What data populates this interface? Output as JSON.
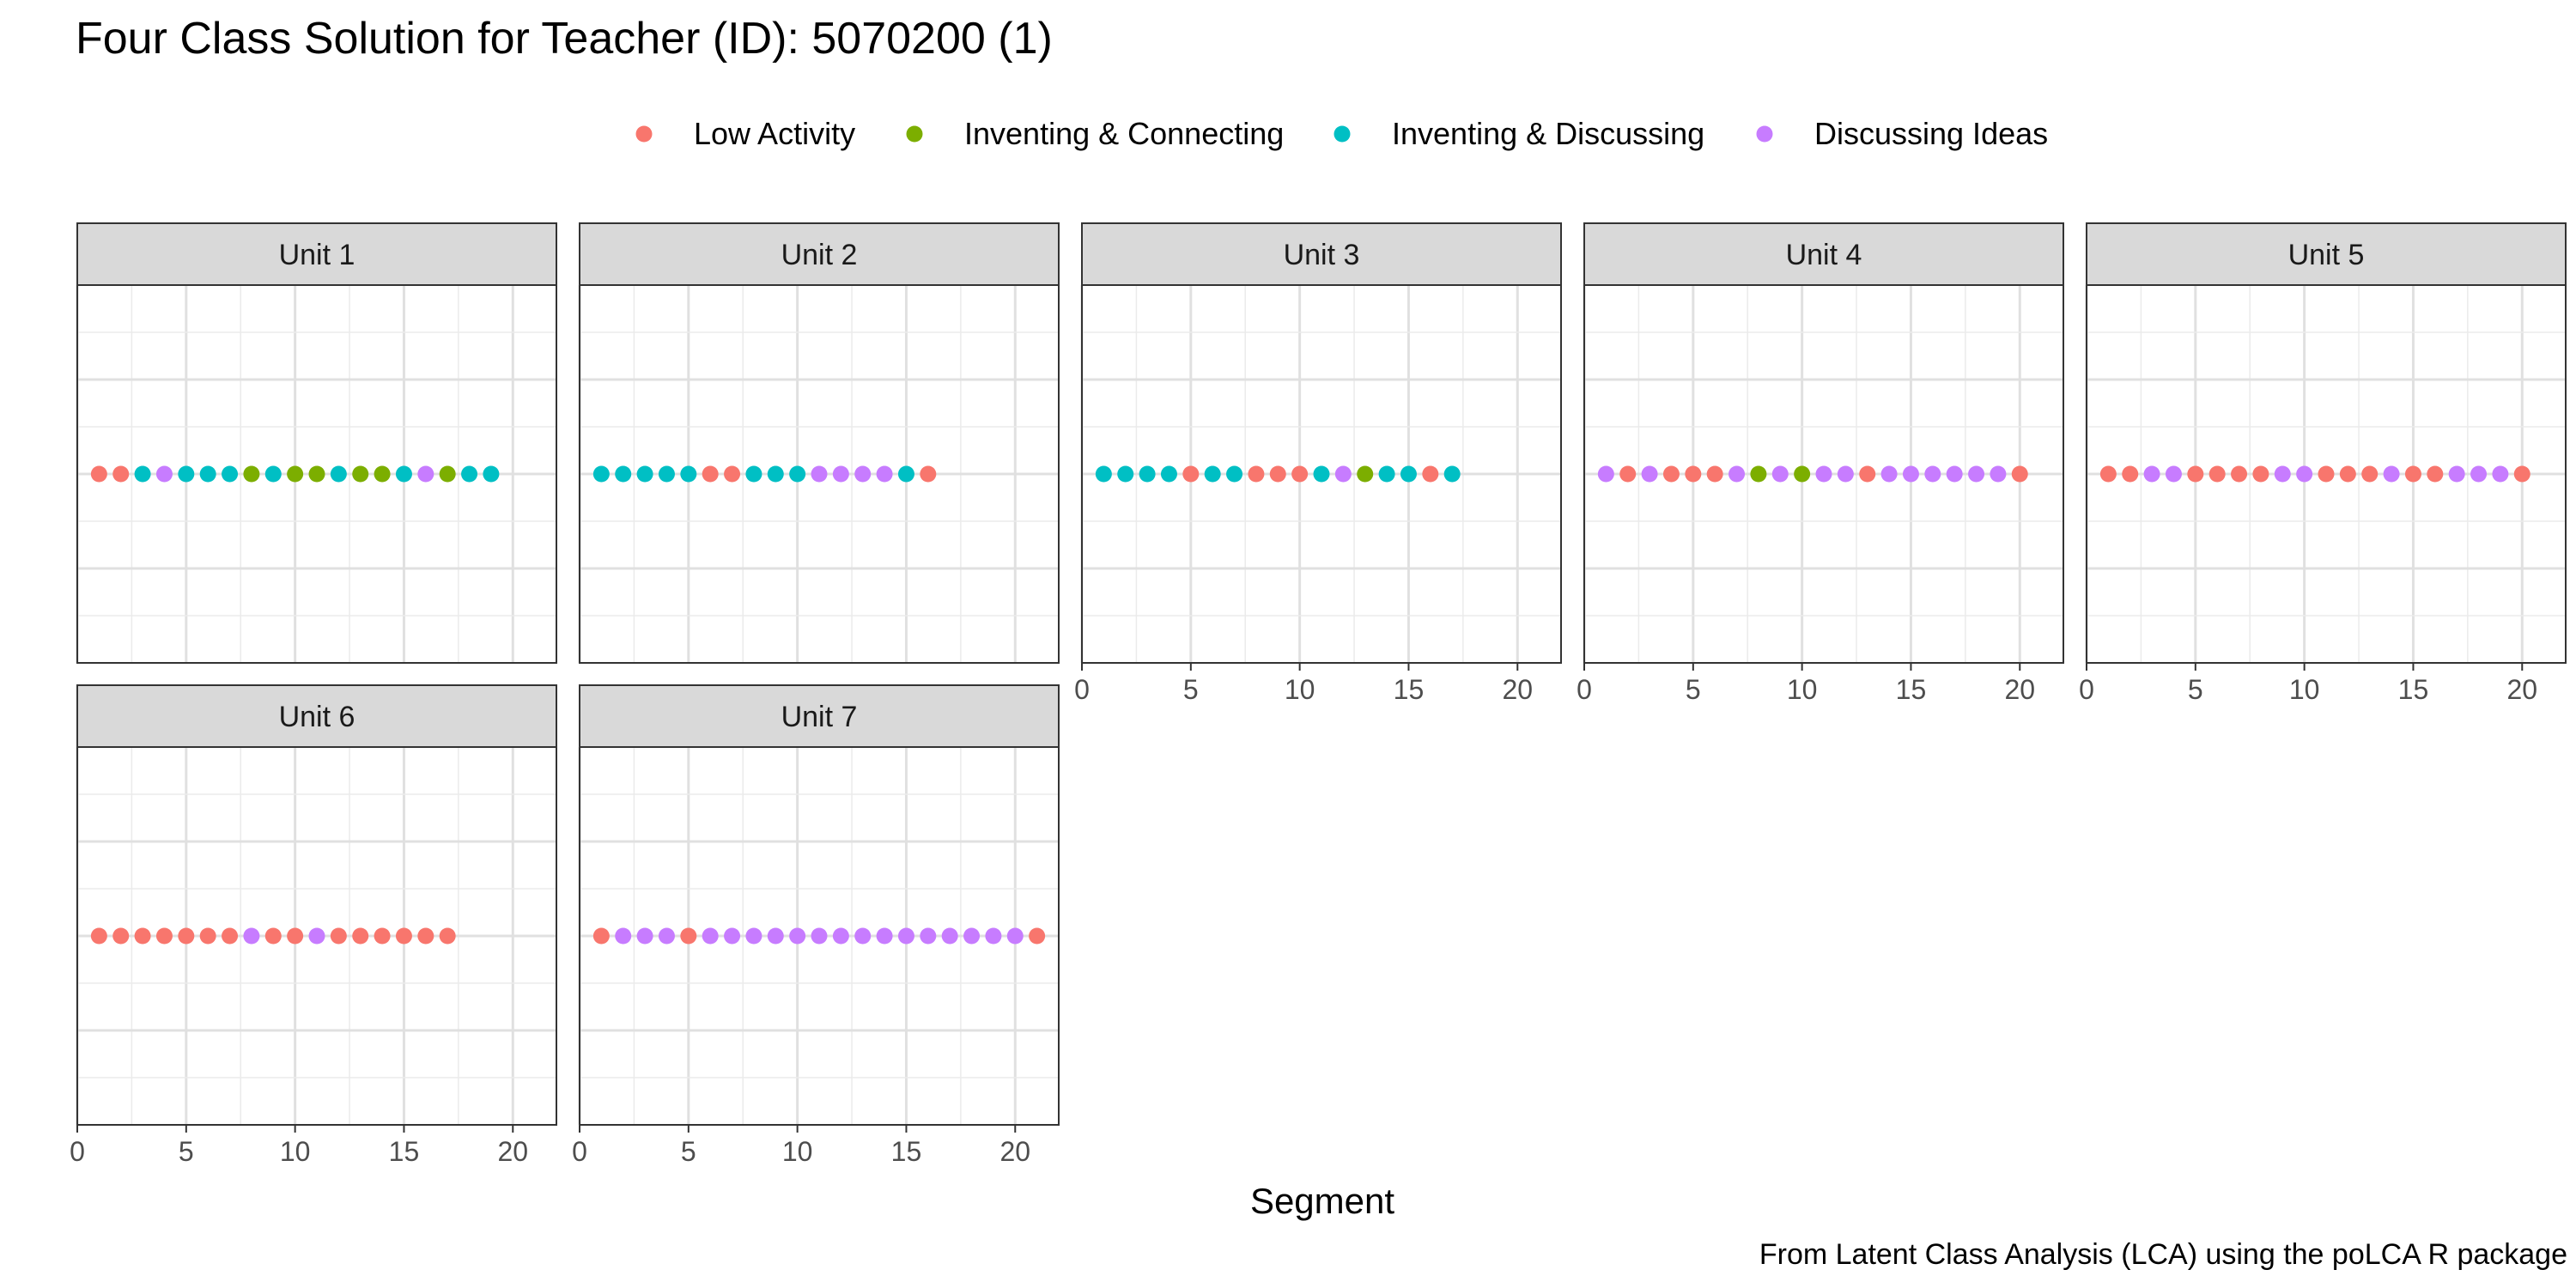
{
  "chart_data": {
    "type": "scatter",
    "title": "Four Class Solution for Teacher (ID): 5070200 (1)",
    "xlabel": "Segment",
    "ylabel": "",
    "caption": "From Latent Class Analysis (LCA) using the poLCA R package",
    "xlim": [
      0,
      22
    ],
    "x_ticks": [
      0,
      5,
      10,
      15,
      20
    ],
    "grid": true,
    "legend_position": "top",
    "classes": [
      {
        "name": "Low Activity",
        "color": "#F8766D"
      },
      {
        "name": "Inventing & Connecting",
        "color": "#7CAE00"
      },
      {
        "name": "Inventing & Discussing",
        "color": "#00BFC4"
      },
      {
        "name": "Discussing Ideas",
        "color": "#C77CFF"
      }
    ],
    "facets": [
      {
        "label": "Unit 1",
        "segments": [
          "Low Activity",
          "Low Activity",
          "Inventing & Discussing",
          "Discussing Ideas",
          "Inventing & Discussing",
          "Inventing & Discussing",
          "Inventing & Discussing",
          "Inventing & Connecting",
          "Inventing & Discussing",
          "Inventing & Connecting",
          "Inventing & Connecting",
          "Inventing & Discussing",
          "Inventing & Connecting",
          "Inventing & Connecting",
          "Inventing & Discussing",
          "Discussing Ideas",
          "Inventing & Connecting",
          "Inventing & Discussing",
          "Inventing & Discussing"
        ]
      },
      {
        "label": "Unit 2",
        "segments": [
          "Inventing & Discussing",
          "Inventing & Discussing",
          "Inventing & Discussing",
          "Inventing & Discussing",
          "Inventing & Discussing",
          "Low Activity",
          "Low Activity",
          "Inventing & Discussing",
          "Inventing & Discussing",
          "Inventing & Discussing",
          "Discussing Ideas",
          "Discussing Ideas",
          "Discussing Ideas",
          "Discussing Ideas",
          "Inventing & Discussing",
          "Low Activity"
        ]
      },
      {
        "label": "Unit 3",
        "segments": [
          "Inventing & Discussing",
          "Inventing & Discussing",
          "Inventing & Discussing",
          "Inventing & Discussing",
          "Low Activity",
          "Inventing & Discussing",
          "Inventing & Discussing",
          "Low Activity",
          "Low Activity",
          "Low Activity",
          "Inventing & Discussing",
          "Discussing Ideas",
          "Inventing & Connecting",
          "Inventing & Discussing",
          "Inventing & Discussing",
          "Low Activity",
          "Inventing & Discussing"
        ]
      },
      {
        "label": "Unit 4",
        "segments": [
          "Discussing Ideas",
          "Low Activity",
          "Discussing Ideas",
          "Low Activity",
          "Low Activity",
          "Low Activity",
          "Discussing Ideas",
          "Inventing & Connecting",
          "Discussing Ideas",
          "Inventing & Connecting",
          "Discussing Ideas",
          "Discussing Ideas",
          "Low Activity",
          "Discussing Ideas",
          "Discussing Ideas",
          "Discussing Ideas",
          "Discussing Ideas",
          "Discussing Ideas",
          "Discussing Ideas",
          "Low Activity"
        ]
      },
      {
        "label": "Unit 5",
        "segments": [
          "Low Activity",
          "Low Activity",
          "Discussing Ideas",
          "Discussing Ideas",
          "Low Activity",
          "Low Activity",
          "Low Activity",
          "Low Activity",
          "Discussing Ideas",
          "Discussing Ideas",
          "Low Activity",
          "Low Activity",
          "Low Activity",
          "Discussing Ideas",
          "Low Activity",
          "Low Activity",
          "Discussing Ideas",
          "Discussing Ideas",
          "Discussing Ideas",
          "Low Activity"
        ]
      },
      {
        "label": "Unit 6",
        "segments": [
          "Low Activity",
          "Low Activity",
          "Low Activity",
          "Low Activity",
          "Low Activity",
          "Low Activity",
          "Low Activity",
          "Discussing Ideas",
          "Low Activity",
          "Low Activity",
          "Discussing Ideas",
          "Low Activity",
          "Low Activity",
          "Low Activity",
          "Low Activity",
          "Low Activity",
          "Low Activity"
        ]
      },
      {
        "label": "Unit 7",
        "segments": [
          "Low Activity",
          "Discussing Ideas",
          "Discussing Ideas",
          "Discussing Ideas",
          "Low Activity",
          "Discussing Ideas",
          "Discussing Ideas",
          "Discussing Ideas",
          "Discussing Ideas",
          "Discussing Ideas",
          "Discussing Ideas",
          "Discussing Ideas",
          "Discussing Ideas",
          "Discussing Ideas",
          "Discussing Ideas",
          "Discussing Ideas",
          "Discussing Ideas",
          "Discussing Ideas",
          "Discussing Ideas",
          "Discussing Ideas",
          "Low Activity"
        ]
      }
    ]
  }
}
